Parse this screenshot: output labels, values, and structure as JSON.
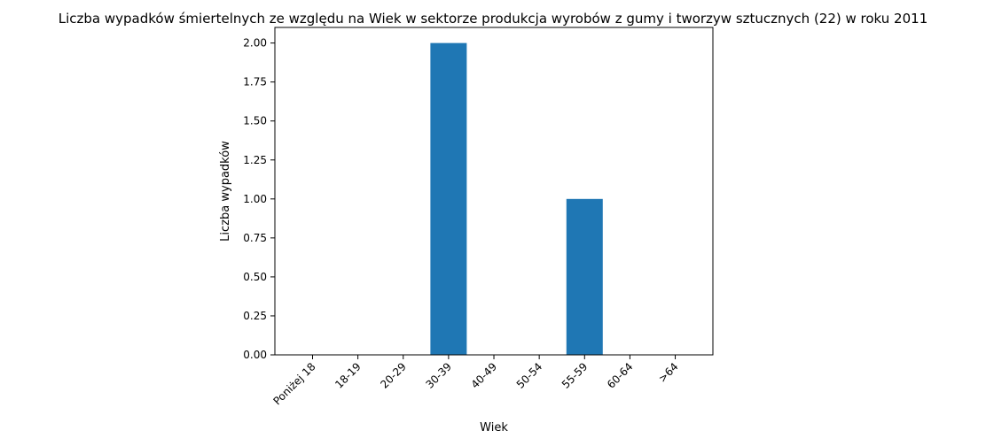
{
  "chart_data": {
    "type": "bar",
    "title": "Liczba wypadków śmiertelnych ze względu na Wiek w sektorze produkcja wyrobów z gumy i tworzyw sztucznych (22) w roku 2011",
    "xlabel": "Wiek",
    "ylabel": "Liczba wypadków",
    "categories": [
      "Poniżej 18",
      "18-19",
      "20-29",
      "30-39",
      "40-49",
      "50-54",
      "55-59",
      "60-64",
      ">64"
    ],
    "values": [
      0,
      0,
      0,
      2,
      0,
      0,
      1,
      0,
      0
    ],
    "ylim": [
      0,
      2.1
    ],
    "yticks": [
      "0.00",
      "0.25",
      "0.50",
      "0.75",
      "1.00",
      "1.25",
      "1.50",
      "1.75",
      "2.00"
    ],
    "bar_color": "#1f77b4",
    "grid": false,
    "legend": "none"
  }
}
